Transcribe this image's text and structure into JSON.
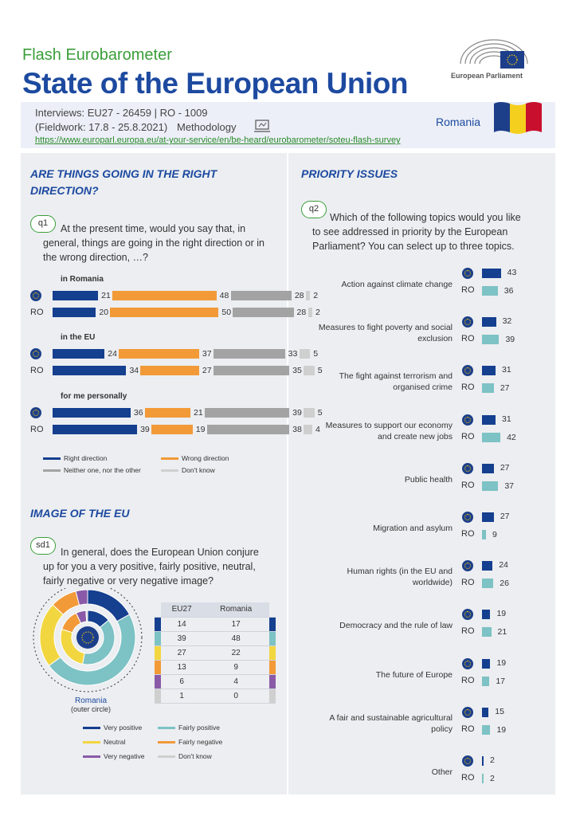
{
  "header": {
    "flash": "Flash Eurobarometer",
    "title": "State of the European Union",
    "ep_label": "European Parliament",
    "interviews": "Interviews: EU27 - 26459 | RO - 1009",
    "fieldwork": "(Fieldwork: 17.8 - 25.8.2021)",
    "methodology": "Methodology",
    "url": "https://www.europarl.europa.eu/at-your-service/en/be-heard/eurobarometer/soteu-flash-survey",
    "country": "Romania"
  },
  "colors": {
    "right": "#153f8f",
    "wrong": "#f29a38",
    "neither": "#a3a3a3",
    "dontknow": "#cfcfcf",
    "fairpos": "#7dc2c4",
    "neutral": "#f2d640",
    "veryneg": "#8a5aa8",
    "eu": "#153f8f",
    "ro": "#7dc2c4"
  },
  "q1": {
    "section_title_1": "ARE THINGS GOING IN THE RIGHT",
    "section_title_2": "DIRECTION?",
    "badge": "q1",
    "question_1": "At the present time, would you say that, in",
    "question_2": "general, things are going in the right direction or in",
    "question_3": "the wrong direction, …?",
    "ro_label": "RO",
    "legend": {
      "right": "Right direction",
      "wrong": "Wrong direction",
      "neither": "Neither one, nor the other",
      "dontknow": "Don't know"
    }
  },
  "sd1": {
    "section_title": "IMAGE OF THE EU",
    "badge": "sd1",
    "question_1": "In general, does the European Union conjure",
    "question_2": "up for you a very positive, fairly positive, neutral,",
    "question_3": "fairly negative or very negative image?",
    "outer_label": "Romania",
    "outer_sub": "(outer circle)",
    "legend": {
      "vpos": "Very positive",
      "fpos": "Fairly positive",
      "neutral": "Neutral",
      "fneg": "Fairly negative",
      "vneg": "Very negative",
      "dk": "Don't know"
    }
  },
  "q2": {
    "section_title": "PRIORITY ISSUES",
    "badge": "q2",
    "question_1": "Which of the following topics would you like",
    "question_2": "to see addressed in priority by the European",
    "question_3": "Parliament? You can select up to three topics.",
    "ro_label": "RO"
  },
  "chart_data": [
    {
      "type": "bar",
      "title": "ARE THINGS GOING IN THE RIGHT DIRECTION?",
      "stacked": true,
      "series_names": [
        "Right direction",
        "Wrong direction",
        "Neither one, nor the other",
        "Don't know"
      ],
      "groups": [
        {
          "label": "in Romania",
          "rows": [
            {
              "row": "EU27",
              "values": [
                21,
                48,
                28,
                2
              ]
            },
            {
              "row": "RO",
              "values": [
                20,
                50,
                28,
                2
              ]
            }
          ]
        },
        {
          "label": "in the EU",
          "rows": [
            {
              "row": "EU27",
              "values": [
                24,
                37,
                33,
                5
              ]
            },
            {
              "row": "RO",
              "values": [
                34,
                27,
                35,
                5
              ]
            }
          ]
        },
        {
          "label": "for me personally",
          "rows": [
            {
              "row": "EU27",
              "values": [
                36,
                21,
                39,
                5
              ]
            },
            {
              "row": "RO",
              "values": [
                39,
                19,
                38,
                4
              ]
            }
          ]
        }
      ]
    },
    {
      "type": "pie",
      "title": "IMAGE OF THE EU",
      "categories": [
        "Very positive",
        "Fairly positive",
        "Neutral",
        "Fairly negative",
        "Very negative",
        "Don't know"
      ],
      "series": [
        {
          "name": "EU27",
          "values": [
            14,
            39,
            27,
            13,
            6,
            1
          ]
        },
        {
          "name": "Romania",
          "values": [
            17,
            48,
            22,
            9,
            4,
            0
          ]
        }
      ],
      "table_headers": [
        "EU27",
        "Romania"
      ]
    },
    {
      "type": "bar",
      "title": "PRIORITY ISSUES",
      "categories": [
        "Action against climate change",
        "Measures to fight poverty and social exclusion",
        "The fight against terrorism and organised crime",
        "Measures to support our economy and create new jobs",
        "Public health",
        "Migration and asylum",
        "Human rights (in the EU and worldwide)",
        "Democracy and the rule of law",
        "The future of Europe",
        "A fair and sustainable agricultural policy",
        "Other"
      ],
      "label_lines": [
        [
          "Action against climate change"
        ],
        [
          "Measures to fight poverty and social",
          "exclusion"
        ],
        [
          "The fight against terrorism and",
          "organised crime"
        ],
        [
          "Measures to support our economy",
          "and create new jobs"
        ],
        [
          "Public health"
        ],
        [
          "Migration and asylum"
        ],
        [
          "Human rights (in the EU and",
          "worldwide)"
        ],
        [
          "Democracy and the rule of law"
        ],
        [
          "The future of Europe"
        ],
        [
          "A fair and sustainable agricultural",
          "policy"
        ],
        [
          "Other"
        ]
      ],
      "series": [
        {
          "name": "EU27",
          "values": [
            43,
            32,
            31,
            31,
            27,
            27,
            24,
            19,
            19,
            15,
            2
          ]
        },
        {
          "name": "RO",
          "values": [
            36,
            39,
            27,
            42,
            37,
            9,
            26,
            21,
            17,
            19,
            2
          ]
        }
      ]
    }
  ]
}
